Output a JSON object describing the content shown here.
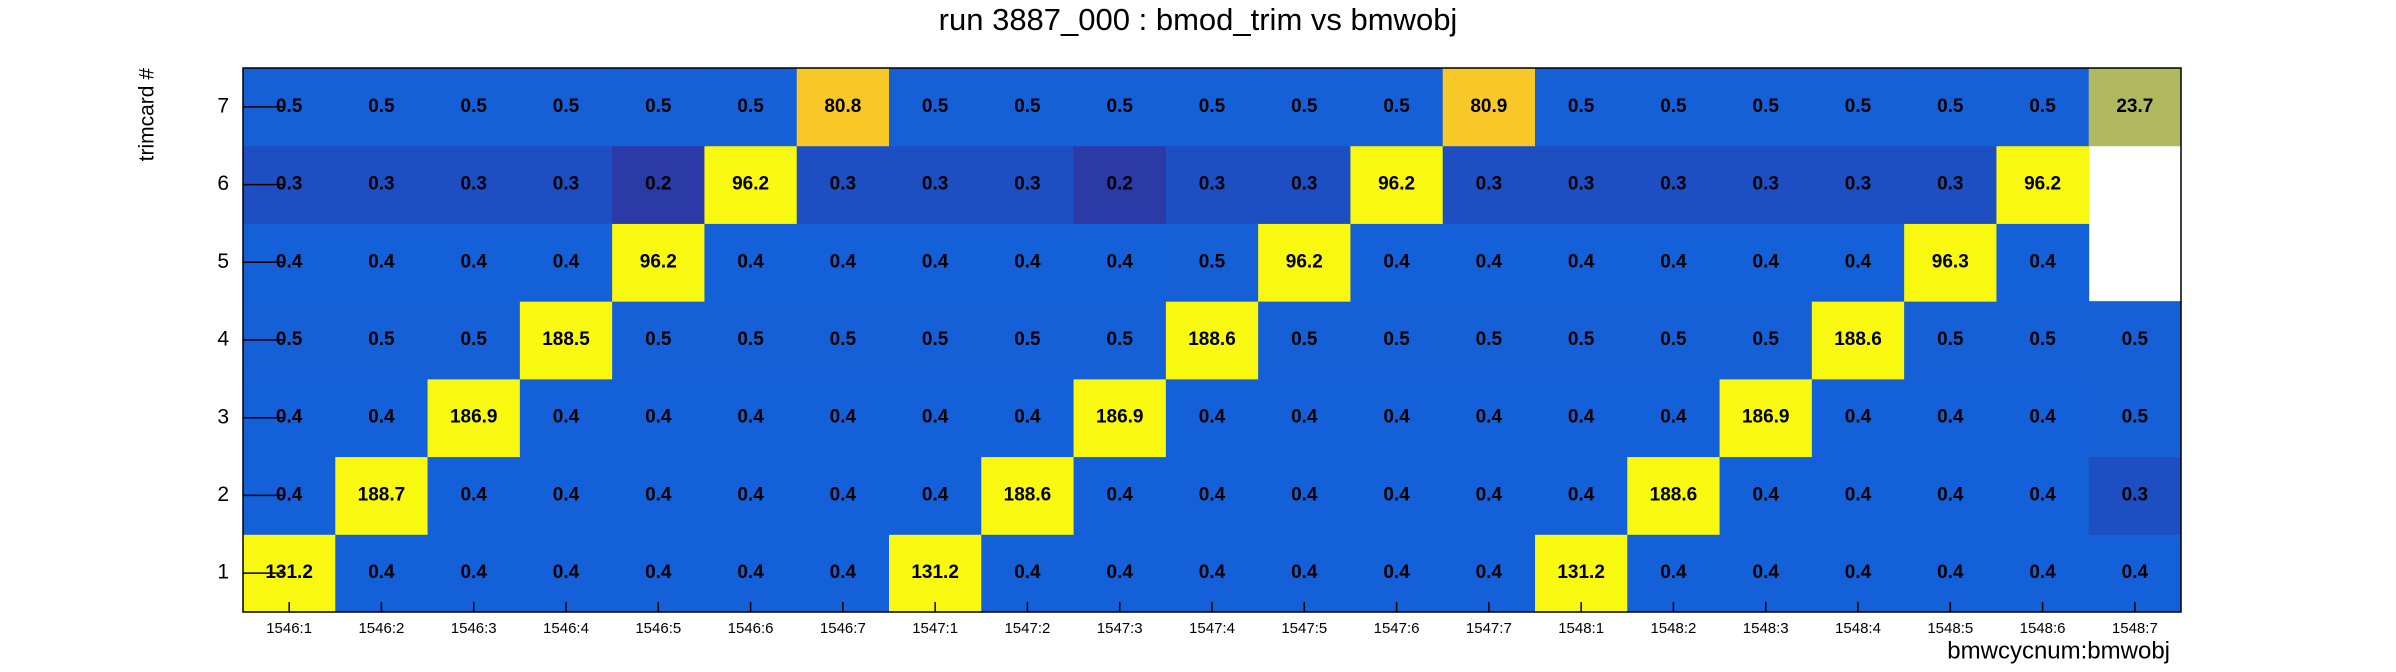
{
  "chart_data": {
    "type": "heatmap",
    "title": "run 3887_000 : bmod_trim vs bmwobj",
    "x_label": "bmwcycnum:bmwobj",
    "y_label": "trimcard #",
    "categories": [
      "1546:1",
      "1546:2",
      "1546:3",
      "1546:4",
      "1546:5",
      "1546:6",
      "1546:7",
      "1547:1",
      "1547:2",
      "1547:3",
      "1547:4",
      "1547:5",
      "1547:6",
      "1547:7",
      "1548:1",
      "1548:2",
      "1548:3",
      "1548:4",
      "1548:5",
      "1548:6",
      "1548:7"
    ],
    "y_categories": [
      "1",
      "2",
      "3",
      "4",
      "5",
      "6",
      "7"
    ],
    "z": [
      [
        131.2,
        0.4,
        0.4,
        0.4,
        0.4,
        0.4,
        0.4,
        131.2,
        0.4,
        0.4,
        0.4,
        0.4,
        0.4,
        0.4,
        131.2,
        0.4,
        0.4,
        0.4,
        0.4,
        0.4,
        0.4
      ],
      [
        0.4,
        188.7,
        0.4,
        0.4,
        0.4,
        0.4,
        0.4,
        0.4,
        188.6,
        0.4,
        0.4,
        0.4,
        0.4,
        0.4,
        0.4,
        188.6,
        0.4,
        0.4,
        0.4,
        0.4,
        0.3
      ],
      [
        0.4,
        0.4,
        186.9,
        0.4,
        0.4,
        0.4,
        0.4,
        0.4,
        0.4,
        186.9,
        0.4,
        0.4,
        0.4,
        0.4,
        0.4,
        0.4,
        186.9,
        0.4,
        0.4,
        0.4,
        0.5
      ],
      [
        0.5,
        0.5,
        0.5,
        188.5,
        0.5,
        0.5,
        0.5,
        0.5,
        0.5,
        0.5,
        188.6,
        0.5,
        0.5,
        0.5,
        0.5,
        0.5,
        0.5,
        188.6,
        0.5,
        0.5,
        0.5
      ],
      [
        0.4,
        0.4,
        0.4,
        0.4,
        96.2,
        0.4,
        0.4,
        0.4,
        0.4,
        0.4,
        0.5,
        96.2,
        0.4,
        0.4,
        0.4,
        0.4,
        0.4,
        0.4,
        96.3,
        0.4,
        null
      ],
      [
        0.3,
        0.3,
        0.3,
        0.3,
        0.2,
        96.2,
        0.3,
        0.3,
        0.3,
        0.2,
        0.3,
        0.3,
        96.2,
        0.3,
        0.3,
        0.3,
        0.3,
        0.3,
        0.3,
        96.2,
        null
      ],
      [
        0.5,
        0.5,
        0.5,
        0.5,
        0.5,
        0.5,
        80.8,
        0.5,
        0.5,
        0.5,
        0.5,
        0.5,
        0.5,
        80.9,
        0.5,
        0.5,
        0.5,
        0.5,
        0.5,
        0.5,
        23.7
      ]
    ],
    "colorscale": [
      [
        0.2,
        "#2b3aa6"
      ],
      [
        0.3,
        "#1d4fc2"
      ],
      [
        0.4,
        "#1460d8"
      ],
      [
        23.7,
        "#b0b860"
      ],
      [
        80.8,
        "#f8c828"
      ],
      [
        96.2,
        "#f8f810"
      ]
    ]
  }
}
